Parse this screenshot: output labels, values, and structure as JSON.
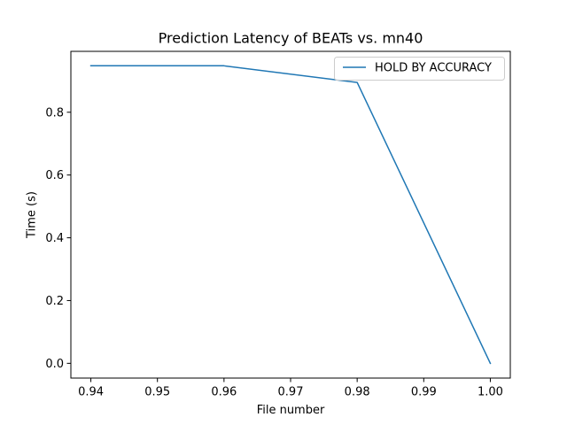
{
  "chart_data": {
    "type": "line",
    "title": "Prediction Latency of BEATs vs. mn40",
    "xlabel": "File number",
    "ylabel": "Time (s)",
    "xlim": [
      0.937,
      1.003
    ],
    "ylim": [
      -0.047,
      0.994
    ],
    "x_ticks": [
      0.94,
      0.95,
      0.96,
      0.97,
      0.98,
      0.99,
      1.0
    ],
    "x_tick_labels": [
      "0.94",
      "0.95",
      "0.96",
      "0.97",
      "0.98",
      "0.99",
      "1.00"
    ],
    "y_ticks": [
      0.0,
      0.2,
      0.4,
      0.6,
      0.8
    ],
    "y_tick_labels": [
      "0.0",
      "0.2",
      "0.4",
      "0.6",
      "0.8"
    ],
    "grid": false,
    "legend_position": "top-right",
    "series": [
      {
        "name": "HOLD BY ACCURACY",
        "color": "#1f77b4",
        "x": [
          0.94,
          0.96,
          0.98,
          1.0
        ],
        "y": [
          0.948,
          0.948,
          0.895,
          0.0
        ]
      }
    ]
  }
}
